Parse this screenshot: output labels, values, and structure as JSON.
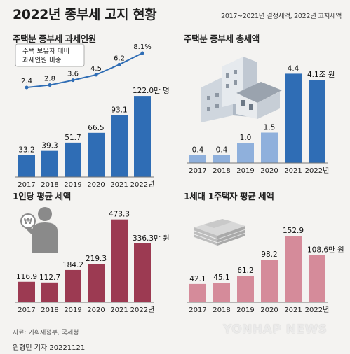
{
  "title": "2022년 종부세 고지 현황",
  "note": "2017~2021년 결정세액, 2022년 고지세액",
  "source": "자료: 기획재정부, 국세청",
  "author": "원형민 기자  20221121",
  "watermark": "YONHAP NEWS",
  "colors": {
    "blue": "#2f6db5",
    "blue_light": "#8fb0dc",
    "red": "#9c3a52",
    "red_light": "#d58b9a"
  },
  "chart_data": [
    {
      "type": "bar",
      "title": "주택분 종부세 과세인원",
      "categories": [
        "2017",
        "2018",
        "2019",
        "2020",
        "2021",
        "2022년"
      ],
      "values": [
        33.2,
        39.3,
        51.7,
        66.5,
        93.1,
        122.0
      ],
      "value_labels": [
        "33.2",
        "39.3",
        "51.7",
        "66.5",
        "93.1",
        "122.0만 명"
      ],
      "line_overlay": {
        "name": "주택 보유자 대비 과세인원 비중",
        "values": [
          2.4,
          2.8,
          3.6,
          4.5,
          6.2,
          8.1
        ],
        "labels": [
          "2.4",
          "2.8",
          "3.6",
          "4.5",
          "6.2",
          "8.1%"
        ]
      }
    },
    {
      "type": "bar",
      "title": "주택분 종부세 총세액",
      "categories": [
        "2017",
        "2018",
        "2019",
        "2020",
        "2021",
        "2022년"
      ],
      "values": [
        0.4,
        0.4,
        1.0,
        1.5,
        4.4,
        4.1
      ],
      "value_labels": [
        "0.4",
        "0.4",
        "1.0",
        "1.5",
        "4.4",
        "4.1조 원"
      ]
    },
    {
      "type": "bar",
      "title": "1인당 평균 세액",
      "categories": [
        "2017",
        "2018",
        "2019",
        "2020",
        "2021",
        "2022년"
      ],
      "values": [
        116.9,
        112.7,
        184.2,
        219.3,
        473.3,
        336.3
      ],
      "value_labels": [
        "116.9",
        "112.7",
        "184.2",
        "219.3",
        "473.3",
        "336.3만 원"
      ]
    },
    {
      "type": "bar",
      "title": "1세대 1주택자 평균 세액",
      "categories": [
        "2017",
        "2018",
        "2019",
        "2020",
        "2021",
        "2022년"
      ],
      "values": [
        42.1,
        45.1,
        61.2,
        98.2,
        152.9,
        108.6
      ],
      "value_labels": [
        "42.1",
        "45.1",
        "61.2",
        "98.2",
        "152.9",
        "108.6만 원"
      ]
    }
  ]
}
